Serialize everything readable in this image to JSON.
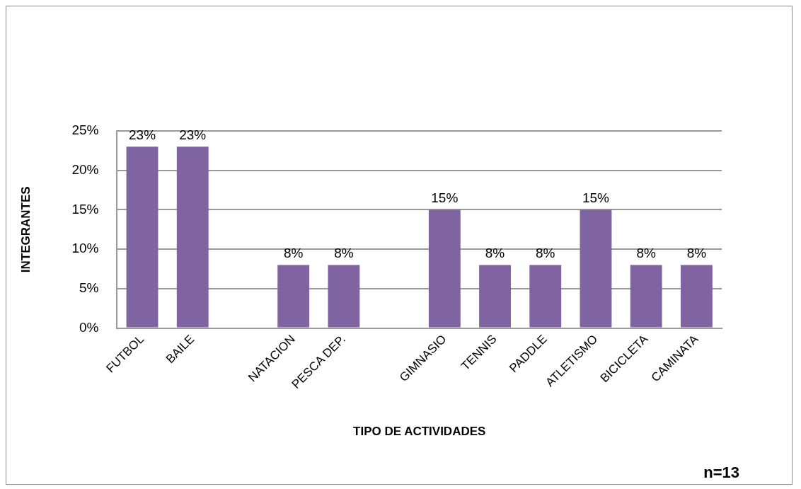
{
  "chart_data": {
    "type": "bar",
    "xlabel": "TIPO DE ACTIVIDADES",
    "ylabel": "INTEGRANTES",
    "categories": [
      "FUTBOL",
      "BAILE",
      null,
      "NATACION",
      "PESCA DEP.",
      null,
      "GIMNASIO",
      "TENNIS",
      "PADDLE",
      "ATLETISMO",
      "BICICLETA",
      "CAMINATA"
    ],
    "values": [
      23,
      23,
      null,
      8,
      8,
      null,
      15,
      8,
      8,
      15,
      8,
      8
    ],
    "value_labels": [
      "23%",
      "23%",
      null,
      "8%",
      "8%",
      null,
      "15%",
      "8%",
      "8%",
      "15%",
      "8%",
      "8%"
    ],
    "color": "#7f64a1",
    "ylim": [
      0,
      25
    ],
    "yticks": [
      {
        "value": 0,
        "label": "0%"
      },
      {
        "value": 5,
        "label": "5%"
      },
      {
        "value": 10,
        "label": "10%"
      },
      {
        "value": 15,
        "label": "15%"
      },
      {
        "value": 20,
        "label": "20%"
      },
      {
        "value": 25,
        "label": "25%"
      }
    ],
    "grid": "y",
    "legend": false,
    "annotations": [
      "n=13"
    ]
  }
}
